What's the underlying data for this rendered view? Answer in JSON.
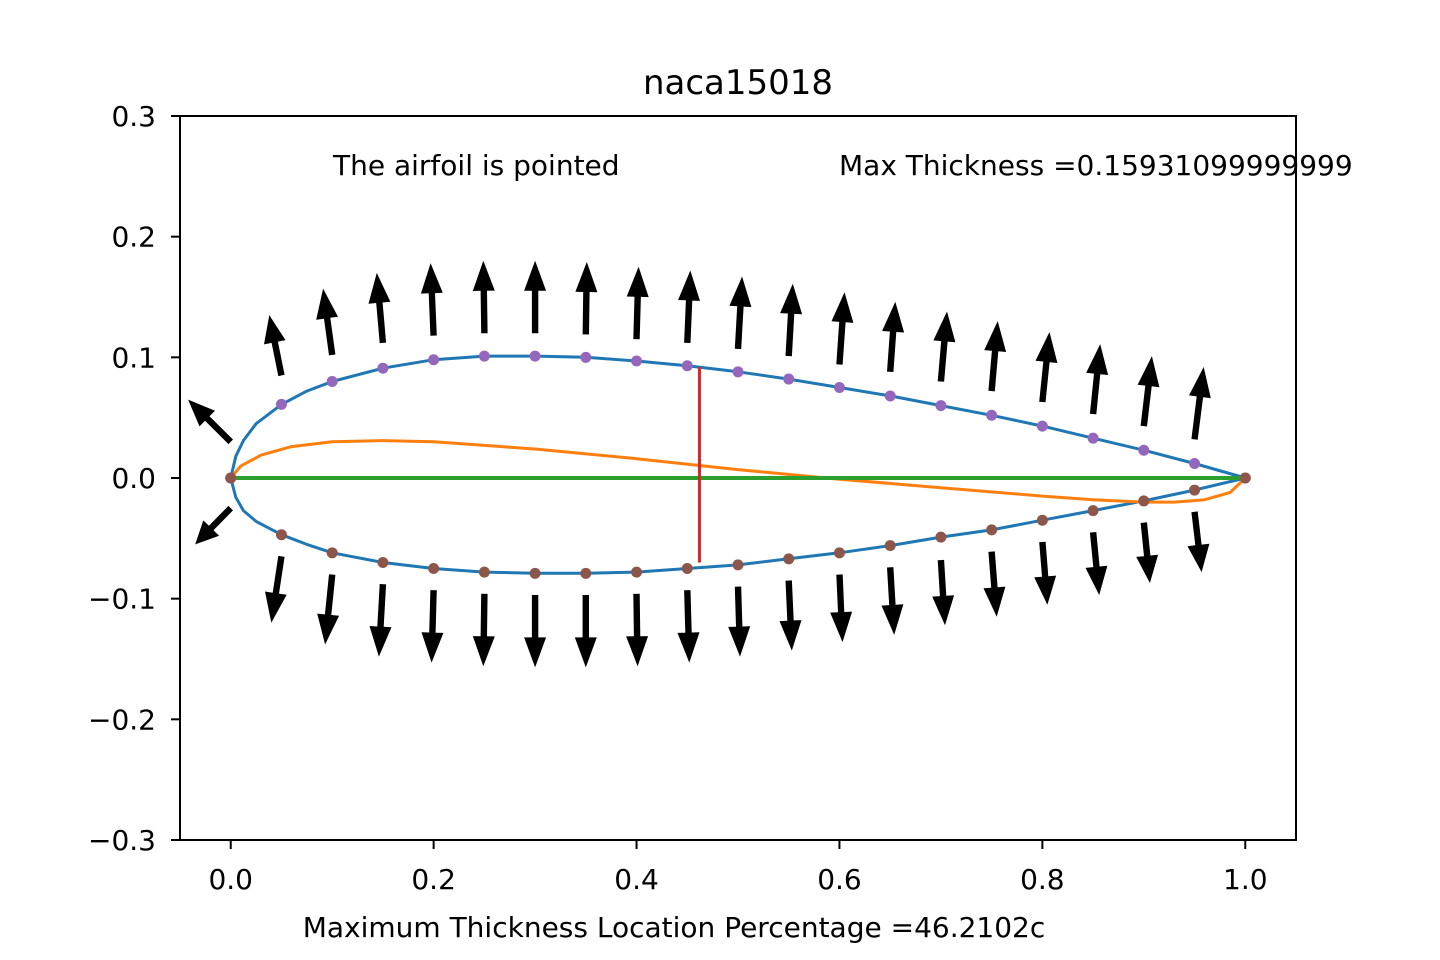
{
  "chart_data": {
    "type": "line",
    "title": "naca15018",
    "xlabel": "Maximum Thickness Location Percentage =46.2102c",
    "ylabel": "",
    "xlim": [
      -0.05,
      1.05
    ],
    "ylim": [
      -0.3,
      0.3
    ],
    "xticks": [
      0.0,
      0.2,
      0.4,
      0.6,
      0.8,
      1.0
    ],
    "xtick_labels": [
      "0.0",
      "0.2",
      "0.4",
      "0.6",
      "0.8",
      "1.0"
    ],
    "yticks": [
      0.3,
      0.2,
      0.1,
      0.0,
      -0.1,
      -0.2,
      -0.3
    ],
    "ytick_labels": [
      "0.3",
      "0.2",
      "0.1",
      "0.0",
      "−0.1",
      "−0.2",
      "−0.3"
    ],
    "grid": false,
    "annotations": {
      "pointed": "The airfoil is pointed",
      "max_thickness": "Max Thickness =0.15931099999999"
    },
    "max_thickness_line": {
      "x": 0.462,
      "y_top": 0.092,
      "y_bottom": -0.07,
      "color": "#d62728"
    },
    "colors": {
      "surface": "#1f77b4",
      "camber": "#ff7f0e",
      "chord": "#2ca02c",
      "thickness_line": "#d62728",
      "upper_points": "#9467bd",
      "lower_points": "#8c564b",
      "normals": "#000000"
    },
    "series": [
      {
        "role": "upper_surface",
        "x": [
          0.0,
          0.005,
          0.0125,
          0.025,
          0.05,
          0.075,
          0.1,
          0.15,
          0.2,
          0.25,
          0.3,
          0.35,
          0.4,
          0.45,
          0.5,
          0.55,
          0.6,
          0.65,
          0.7,
          0.75,
          0.8,
          0.85,
          0.9,
          0.95,
          1.0
        ],
        "y": [
          0.0,
          0.018,
          0.031,
          0.045,
          0.061,
          0.072,
          0.08,
          0.091,
          0.098,
          0.101,
          0.101,
          0.1,
          0.097,
          0.093,
          0.088,
          0.082,
          0.075,
          0.068,
          0.06,
          0.052,
          0.043,
          0.033,
          0.023,
          0.012,
          0.0
        ]
      },
      {
        "role": "lower_surface",
        "x": [
          0.0,
          0.005,
          0.0125,
          0.025,
          0.05,
          0.075,
          0.1,
          0.15,
          0.2,
          0.25,
          0.3,
          0.35,
          0.4,
          0.45,
          0.5,
          0.55,
          0.6,
          0.65,
          0.7,
          0.75,
          0.8,
          0.85,
          0.9,
          0.95,
          1.0
        ],
        "y": [
          0.0,
          -0.016,
          -0.027,
          -0.036,
          -0.047,
          -0.055,
          -0.062,
          -0.07,
          -0.075,
          -0.078,
          -0.079,
          -0.079,
          -0.078,
          -0.075,
          -0.072,
          -0.067,
          -0.062,
          -0.056,
          -0.049,
          -0.043,
          -0.035,
          -0.027,
          -0.019,
          -0.01,
          0.0
        ]
      },
      {
        "role": "camber_line",
        "x": [
          0.0,
          0.01,
          0.03,
          0.06,
          0.1,
          0.15,
          0.2,
          0.3,
          0.4,
          0.5,
          0.6,
          0.7,
          0.8,
          0.85,
          0.9,
          0.93,
          0.96,
          0.985,
          1.0
        ],
        "y": [
          0.0,
          0.01,
          0.019,
          0.026,
          0.03,
          0.031,
          0.03,
          0.024,
          0.016,
          0.007,
          -0.001,
          -0.008,
          -0.015,
          -0.018,
          -0.02,
          -0.02,
          -0.018,
          -0.012,
          0.0
        ]
      },
      {
        "role": "chord_line",
        "x": [
          0.0,
          1.0
        ],
        "y": [
          0.0,
          0.0
        ]
      },
      {
        "role": "upper_points",
        "x": [
          0.0,
          0.05,
          0.1,
          0.15,
          0.2,
          0.25,
          0.3,
          0.35,
          0.4,
          0.45,
          0.5,
          0.55,
          0.6,
          0.65,
          0.7,
          0.75,
          0.8,
          0.85,
          0.9,
          0.95,
          1.0
        ],
        "y": [
          0.0,
          0.061,
          0.08,
          0.091,
          0.098,
          0.101,
          0.101,
          0.1,
          0.097,
          0.093,
          0.088,
          0.082,
          0.075,
          0.068,
          0.06,
          0.052,
          0.043,
          0.033,
          0.023,
          0.012,
          0.0
        ]
      },
      {
        "role": "lower_points",
        "x": [
          0.0,
          0.05,
          0.1,
          0.15,
          0.2,
          0.25,
          0.3,
          0.35,
          0.4,
          0.45,
          0.5,
          0.55,
          0.6,
          0.65,
          0.7,
          0.75,
          0.8,
          0.85,
          0.9,
          0.95,
          1.0
        ],
        "y": [
          0.0,
          -0.047,
          -0.062,
          -0.07,
          -0.075,
          -0.078,
          -0.079,
          -0.079,
          -0.078,
          -0.075,
          -0.072,
          -0.067,
          -0.062,
          -0.056,
          -0.049,
          -0.043,
          -0.035,
          -0.027,
          -0.019,
          -0.01,
          0.0
        ]
      }
    ],
    "normal_vectors_upper": {
      "x": [
        0.0,
        0.05,
        0.1,
        0.15,
        0.2,
        0.25,
        0.3,
        0.35,
        0.4,
        0.45,
        0.5,
        0.55,
        0.6,
        0.65,
        0.7,
        0.75,
        0.8,
        0.85,
        0.9,
        0.95
      ],
      "y": [
        0.03,
        0.085,
        0.102,
        0.112,
        0.118,
        0.12,
        0.12,
        0.119,
        0.115,
        0.112,
        0.107,
        0.101,
        0.094,
        0.088,
        0.08,
        0.072,
        0.063,
        0.053,
        0.043,
        0.032
      ],
      "dx": [
        -0.042,
        -0.012,
        -0.009,
        -0.006,
        -0.003,
        -0.001,
        0.0,
        0.001,
        0.002,
        0.003,
        0.004,
        0.004,
        0.005,
        0.005,
        0.006,
        0.006,
        0.007,
        0.007,
        0.008,
        0.009
      ],
      "dy": [
        0.035,
        0.05,
        0.055,
        0.058,
        0.06,
        0.06,
        0.06,
        0.06,
        0.06,
        0.06,
        0.06,
        0.06,
        0.06,
        0.058,
        0.058,
        0.058,
        0.058,
        0.058,
        0.058,
        0.06
      ]
    },
    "normal_vectors_lower": {
      "x": [
        0.0,
        0.05,
        0.1,
        0.15,
        0.2,
        0.25,
        0.3,
        0.35,
        0.4,
        0.45,
        0.5,
        0.55,
        0.6,
        0.65,
        0.7,
        0.75,
        0.8,
        0.85,
        0.9,
        0.95
      ],
      "y": [
        -0.025,
        -0.065,
        -0.08,
        -0.088,
        -0.093,
        -0.096,
        -0.097,
        -0.097,
        -0.096,
        -0.093,
        -0.09,
        -0.085,
        -0.08,
        -0.074,
        -0.068,
        -0.061,
        -0.053,
        -0.045,
        -0.037,
        -0.028
      ],
      "dx": [
        -0.035,
        -0.01,
        -0.007,
        -0.004,
        -0.002,
        -0.001,
        0.0,
        0.0,
        0.001,
        0.002,
        0.002,
        0.003,
        0.003,
        0.004,
        0.004,
        0.005,
        0.005,
        0.006,
        0.006,
        0.007
      ],
      "dy": [
        -0.03,
        -0.055,
        -0.058,
        -0.06,
        -0.06,
        -0.06,
        -0.06,
        -0.06,
        -0.06,
        -0.06,
        -0.058,
        -0.058,
        -0.056,
        -0.056,
        -0.054,
        -0.054,
        -0.052,
        -0.052,
        -0.05,
        -0.05
      ]
    }
  }
}
